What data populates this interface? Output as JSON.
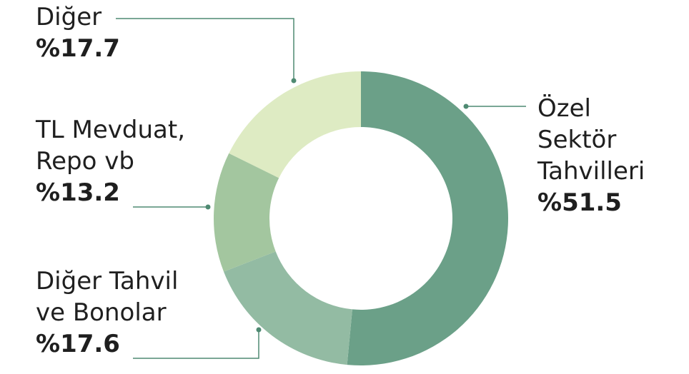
{
  "chart_data": {
    "type": "pie",
    "donut": true,
    "categories": [
      "Özel Sektör Tahvilleri",
      "Diğer Tahvil ve Bonolar",
      "TL Mevduat, Repo vb",
      "Diğer"
    ],
    "values": [
      51.5,
      17.6,
      13.2,
      17.7
    ],
    "value_labels": [
      "%51.5",
      "%17.6",
      "%13.2",
      "%17.7"
    ],
    "colors": [
      "#6ba088",
      "#93bba3",
      "#a3c69f",
      "#deebc3"
    ],
    "leader_color": "#4f8a72",
    "title": "",
    "legend": "none"
  }
}
